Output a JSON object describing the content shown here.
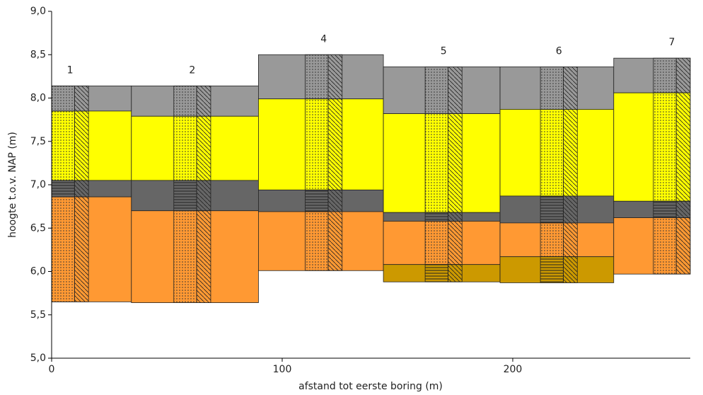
{
  "chart_data": {
    "type": "cross-section",
    "xlabel": "afstand tot eerste boring (m)",
    "ylabel": "hoogte t.o.v. NAP (m)",
    "xlim": [
      0,
      277
    ],
    "ylim": [
      5,
      9
    ],
    "xticks": [
      0,
      100,
      200
    ],
    "yticks": [
      {
        "value": 5,
        "label": "5,0"
      },
      {
        "value": 5.5,
        "label": "5,5"
      },
      {
        "value": 6,
        "label": "6,0"
      },
      {
        "value": 6.5,
        "label": "6,5"
      },
      {
        "value": 7,
        "label": "7,0"
      },
      {
        "value": 7.5,
        "label": "7,5"
      },
      {
        "value": 8,
        "label": "8,0"
      },
      {
        "value": 8.5,
        "label": "8,5"
      },
      {
        "value": 9,
        "label": "9,0"
      }
    ],
    "columns": [
      {
        "label": "1",
        "x": [
          0,
          34.6
        ],
        "boring_x": [
          0,
          16
        ],
        "layers": [
          {
            "top": 8.14,
            "bottom": 7.85,
            "color": "#999999"
          },
          {
            "top": 7.85,
            "bottom": 7.05,
            "color": "#ffff00"
          },
          {
            "top": 7.05,
            "bottom": 6.86,
            "color": "#666666"
          },
          {
            "top": 6.86,
            "bottom": 5.65,
            "color": "#ff9933"
          }
        ]
      },
      {
        "label": "2",
        "x": [
          34.6,
          89.7
        ],
        "boring_x": [
          53,
          69
        ],
        "layers": [
          {
            "top": 8.14,
            "bottom": 7.79,
            "color": "#999999"
          },
          {
            "top": 7.79,
            "bottom": 7.05,
            "color": "#ffff00"
          },
          {
            "top": 7.05,
            "bottom": 6.7,
            "color": "#666666"
          },
          {
            "top": 6.7,
            "bottom": 5.64,
            "color": "#ff9933"
          }
        ]
      },
      {
        "label": "4",
        "x": [
          89.7,
          143.9
        ],
        "boring_x": [
          110,
          126
        ],
        "layers": [
          {
            "top": 8.5,
            "bottom": 7.99,
            "color": "#999999"
          },
          {
            "top": 7.99,
            "bottom": 6.94,
            "color": "#ffff00"
          },
          {
            "top": 6.94,
            "bottom": 6.69,
            "color": "#666666"
          },
          {
            "top": 6.69,
            "bottom": 6.01,
            "color": "#ff9933"
          }
        ]
      },
      {
        "label": "5",
        "x": [
          143.9,
          194.5
        ],
        "boring_x": [
          162,
          178
        ],
        "layers": [
          {
            "top": 8.36,
            "bottom": 7.82,
            "color": "#999999"
          },
          {
            "top": 7.82,
            "bottom": 6.68,
            "color": "#ffff00"
          },
          {
            "top": 6.68,
            "bottom": 6.58,
            "color": "#666666"
          },
          {
            "top": 6.58,
            "bottom": 6.08,
            "color": "#ff9933"
          },
          {
            "top": 6.08,
            "bottom": 5.88,
            "color": "#cc9900"
          }
        ]
      },
      {
        "label": "6",
        "x": [
          194.5,
          243.8
        ],
        "boring_x": [
          212,
          228
        ],
        "layers": [
          {
            "top": 8.36,
            "bottom": 7.87,
            "color": "#999999"
          },
          {
            "top": 7.87,
            "bottom": 6.87,
            "color": "#ffff00"
          },
          {
            "top": 6.87,
            "bottom": 6.56,
            "color": "#666666"
          },
          {
            "top": 6.56,
            "bottom": 6.17,
            "color": "#ff9933"
          },
          {
            "top": 6.17,
            "bottom": 5.87,
            "color": "#cc9900"
          }
        ]
      },
      {
        "label": "7",
        "x": [
          243.8,
          277
        ],
        "boring_x": [
          261,
          277
        ],
        "layers": [
          {
            "top": 8.46,
            "bottom": 8.06,
            "color": "#999999"
          },
          {
            "top": 8.06,
            "bottom": 6.81,
            "color": "#ffff00"
          },
          {
            "top": 6.81,
            "bottom": 6.62,
            "color": "#666666"
          },
          {
            "top": 6.62,
            "bottom": 5.97,
            "color": "#ff9933"
          }
        ]
      }
    ]
  }
}
